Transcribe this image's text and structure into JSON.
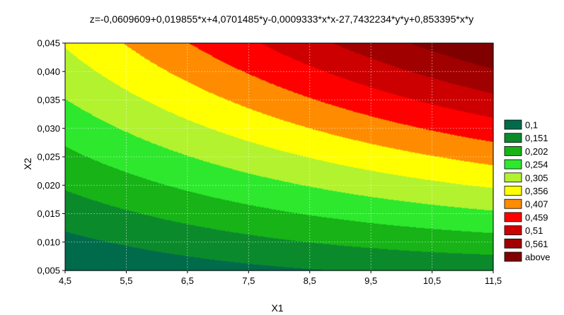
{
  "chart_data": {
    "type": "contour",
    "equation": "z=-0,0609609+0,019855*x+4,0701485*y-0,0009333*x*x-27,7432234*y*y+0,853395*x*y",
    "coefficients": {
      "c0": -0.0609609,
      "x": 0.019855,
      "y": 4.0701485,
      "xx": -0.0009333,
      "yy": -27.7432234,
      "xy": 0.853395
    },
    "xlabel": "X1",
    "ylabel": "X2",
    "xlim": [
      4.5,
      11.5
    ],
    "ylim": [
      0.005,
      0.045
    ],
    "x_ticks": [
      4.5,
      5.5,
      6.5,
      7.5,
      8.5,
      9.5,
      10.5,
      11.5
    ],
    "x_tick_labels": [
      "4,5",
      "5,5",
      "6,5",
      "7,5",
      "8,5",
      "9,5",
      "10,5",
      "11,5"
    ],
    "y_ticks": [
      0.005,
      0.01,
      0.015,
      0.02,
      0.025,
      0.03,
      0.035,
      0.04,
      0.045
    ],
    "y_tick_labels": [
      "0,005",
      "0,010",
      "0,015",
      "0,020",
      "0,025",
      "0,030",
      "0,035",
      "0,040",
      "0,045"
    ],
    "grid": true,
    "legend_position": "right",
    "levels": [
      0.1,
      0.151,
      0.202,
      0.254,
      0.305,
      0.356,
      0.407,
      0.459,
      0.51,
      0.561
    ],
    "legend": [
      {
        "label": "0,1",
        "color": "#006b4a"
      },
      {
        "label": "0,151",
        "color": "#0b8a2b"
      },
      {
        "label": "0,202",
        "color": "#17b317"
      },
      {
        "label": "0,254",
        "color": "#2ee82e"
      },
      {
        "label": "0,305",
        "color": "#b3f22e"
      },
      {
        "label": "0,356",
        "color": "#ffff00"
      },
      {
        "label": "0,407",
        "color": "#ff8c00"
      },
      {
        "label": "0,459",
        "color": "#ff0000"
      },
      {
        "label": "0,51",
        "color": "#cc0000"
      },
      {
        "label": "0,561",
        "color": "#a00000"
      },
      {
        "label": "above",
        "color": "#800000"
      }
    ]
  }
}
